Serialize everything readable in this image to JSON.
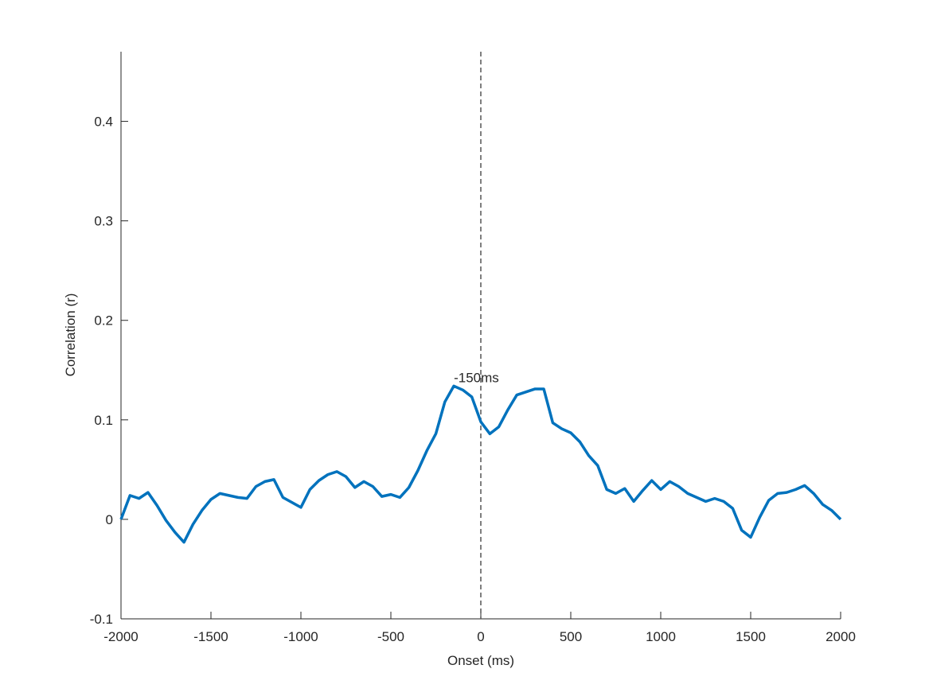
{
  "chart_data": {
    "type": "line",
    "xlabel": "Onset (ms)",
    "ylabel": "Correlation (r)",
    "x": [
      -2000,
      -1950,
      -1900,
      -1850,
      -1800,
      -1750,
      -1700,
      -1650,
      -1600,
      -1550,
      -1500,
      -1450,
      -1400,
      -1350,
      -1300,
      -1250,
      -1200,
      -1150,
      -1100,
      -1050,
      -1000,
      -950,
      -900,
      -850,
      -800,
      -750,
      -700,
      -650,
      -600,
      -550,
      -500,
      -450,
      -400,
      -350,
      -300,
      -250,
      -200,
      -150,
      -100,
      -50,
      0,
      50,
      100,
      150,
      200,
      250,
      300,
      350,
      400,
      450,
      500,
      550,
      600,
      650,
      700,
      750,
      800,
      850,
      900,
      950,
      1000,
      1050,
      1100,
      1150,
      1200,
      1250,
      1300,
      1350,
      1400,
      1450,
      1500,
      1550,
      1600,
      1650,
      1700,
      1750,
      1800,
      1850,
      1900,
      1950,
      2000
    ],
    "series": [
      {
        "color": "#0072bd",
        "values": [
          0,
          0.024,
          0.021,
          0.027,
          0.014,
          -0.001,
          -0.013,
          -0.023,
          -0.005,
          0.009,
          0.02,
          0.026,
          0.024,
          0.022,
          0.021,
          0.033,
          0.038,
          0.04,
          0.022,
          0.017,
          0.012,
          0.03,
          0.039,
          0.045,
          0.048,
          0.043,
          0.032,
          0.038,
          0.033,
          0.023,
          0.025,
          0.022,
          0.032,
          0.049,
          0.069,
          0.086,
          0.118,
          0.134,
          0.13,
          0.123,
          0.098,
          0.086,
          0.093,
          0.11,
          0.125,
          0.128,
          0.131,
          0.131,
          0.097,
          0.091,
          0.087,
          0.078,
          0.064,
          0.054,
          0.03,
          0.026,
          0.031,
          0.018,
          0.029,
          0.039,
          0.03,
          0.038,
          0.033,
          0.026,
          0.022,
          0.018,
          0.021,
          0.018,
          0.011,
          -0.011,
          -0.018,
          0.002,
          0.019,
          0.026,
          0.027,
          0.03,
          0.034,
          0.026,
          0.015,
          0.009,
          0
        ]
      }
    ],
    "xlim": [
      -2000,
      2000
    ],
    "xticks": [
      -2000,
      -1500,
      -1000,
      -500,
      0,
      500,
      1000,
      1500,
      2000
    ],
    "ylim": [
      -0.1,
      0.47
    ],
    "yticks": [
      -0.1,
      0,
      0.1,
      0.2,
      0.3,
      0.4
    ],
    "reference_line": {
      "x": 0,
      "style": "dashed"
    },
    "annotations": [
      {
        "text": "-150ms",
        "x": -150
      }
    ]
  }
}
